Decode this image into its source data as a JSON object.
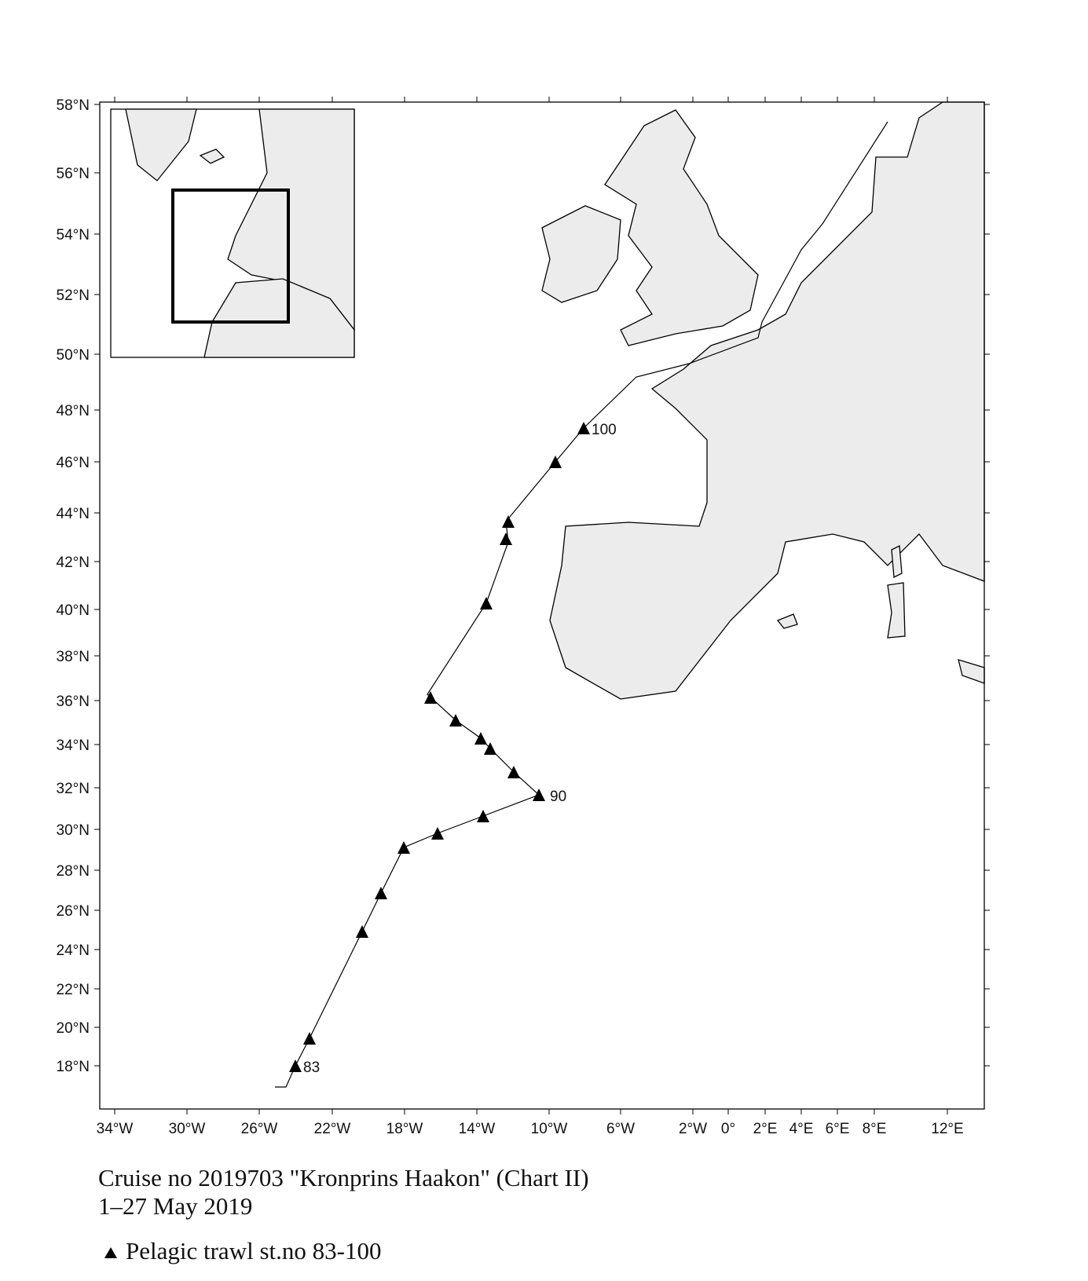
{
  "map": {
    "lat_labels": [
      "58°N",
      "56°N",
      "54°N",
      "52°N",
      "50°N",
      "48°N",
      "46°N",
      "44°N",
      "42°N",
      "40°N",
      "38°N",
      "36°N",
      "34°N",
      "32°N",
      "30°N",
      "28°N",
      "26°N",
      "24°N",
      "22°N",
      "20°N",
      "18°N"
    ],
    "lon_labels": [
      "34°W",
      "30°W",
      "26°W",
      "22°W",
      "18°W",
      "14°W",
      "10°W",
      "6°W",
      "2°W",
      "0°",
      "2°E",
      "4°E",
      "6°E",
      "8°E",
      "12°E"
    ],
    "station_labels": [
      "83",
      "90",
      "100"
    ]
  },
  "caption": {
    "line1": "Cruise no 2019703  \"Kronprins Haakon\"  (Chart II)",
    "line2": "1–27 May 2019"
  },
  "legend": {
    "label": "Pelagic trawl st.no 83-100"
  }
}
